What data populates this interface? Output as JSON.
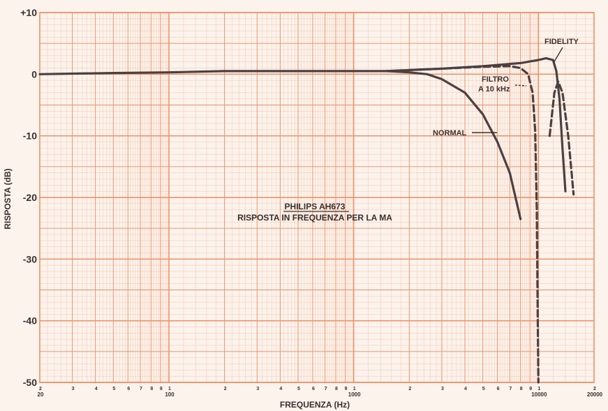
{
  "chart_data": {
    "type": "line",
    "title": "PHILIPS AH673",
    "subtitle": "RISPOSTA IN FREQUENZA PER LA MA",
    "xlabel": "FREQUENZA (Hz)",
    "ylabel": "RISPOSTA (dB)",
    "xscale": "log",
    "xlim": [
      20,
      20000
    ],
    "ylim": [
      -50,
      10
    ],
    "grid": true,
    "x_major_ticks": [
      {
        "value": 20,
        "label": "20"
      },
      {
        "value": 100,
        "label": "100"
      },
      {
        "value": 1000,
        "label": "1000"
      },
      {
        "value": 10000,
        "label": "10000"
      },
      {
        "value": 20000,
        "label": "20000"
      }
    ],
    "x_minor_ticks": [
      {
        "value": 20,
        "label": "2"
      },
      {
        "value": 30,
        "label": "3"
      },
      {
        "value": 40,
        "label": "4"
      },
      {
        "value": 50,
        "label": "5"
      },
      {
        "value": 60,
        "label": "6"
      },
      {
        "value": 70,
        "label": "7"
      },
      {
        "value": 80,
        "label": "8"
      },
      {
        "value": 90,
        "label": "9"
      },
      {
        "value": 100,
        "label": "1"
      },
      {
        "value": 200,
        "label": "2"
      },
      {
        "value": 300,
        "label": "3"
      },
      {
        "value": 400,
        "label": "4"
      },
      {
        "value": 500,
        "label": "5"
      },
      {
        "value": 600,
        "label": "6"
      },
      {
        "value": 700,
        "label": "7"
      },
      {
        "value": 800,
        "label": "8"
      },
      {
        "value": 900,
        "label": "9"
      },
      {
        "value": 1000,
        "label": "1"
      },
      {
        "value": 2000,
        "label": "2"
      },
      {
        "value": 3000,
        "label": "3"
      },
      {
        "value": 4000,
        "label": "4"
      },
      {
        "value": 5000,
        "label": "5"
      },
      {
        "value": 6000,
        "label": "6"
      },
      {
        "value": 7000,
        "label": "7"
      },
      {
        "value": 8000,
        "label": "8"
      },
      {
        "value": 9000,
        "label": "9"
      },
      {
        "value": 10000,
        "label": "1"
      },
      {
        "value": 20000,
        "label": "2"
      }
    ],
    "y_ticks": [
      {
        "value": 10,
        "label": "+10"
      },
      {
        "value": 0,
        "label": "0"
      },
      {
        "value": -10,
        "label": "-10"
      },
      {
        "value": -20,
        "label": "-20"
      },
      {
        "value": -30,
        "label": "-30"
      },
      {
        "value": -40,
        "label": "-40"
      },
      {
        "value": -50,
        "label": "-50"
      }
    ],
    "series": [
      {
        "name": "NORMAL",
        "style": "solid",
        "x": [
          20,
          50,
          100,
          200,
          500,
          1000,
          1500,
          2000,
          2500,
          3000,
          4000,
          5000,
          6000,
          7000,
          8000
        ],
        "y": [
          0,
          0.2,
          0.3,
          0.5,
          0.5,
          0.5,
          0.5,
          0.3,
          0,
          -0.8,
          -3,
          -6.5,
          -11,
          -16,
          -23.5
        ]
      },
      {
        "name": "FIDELITY",
        "style": "solid",
        "x": [
          1500,
          3000,
          5000,
          8000,
          10000,
          11000,
          12000,
          12500,
          13000,
          13500,
          14000
        ],
        "y": [
          0.5,
          0.9,
          1.3,
          1.8,
          2.3,
          2.6,
          2.3,
          0.5,
          -4,
          -12,
          -19
        ]
      },
      {
        "name": "FILTRO A 10 kHz",
        "style": "dashed",
        "x": [
          1500,
          3000,
          5000,
          7000,
          8000,
          8800,
          9300,
          9600,
          9800,
          9900,
          10000
        ],
        "y": [
          0.5,
          0.9,
          1.2,
          1.3,
          1.0,
          0,
          -3,
          -9,
          -22,
          -38,
          -50
        ]
      },
      {
        "name": "FILTRO A 10 kHz",
        "style": "dashed",
        "x": [
          11500,
          12200,
          12800,
          13500,
          14500,
          15500
        ],
        "y": [
          -10,
          -3,
          -1.2,
          -3,
          -10,
          -19.5
        ]
      }
    ],
    "annotations": [
      {
        "text": "FIDELITY",
        "target": "FIDELITY"
      },
      {
        "text": "FILTRO",
        "target": "FILTRO A 10 kHz"
      },
      {
        "text": "A 10 kHz",
        "target": "FILTRO A 10 kHz"
      },
      {
        "text": "NORMAL",
        "target": "NORMAL"
      }
    ],
    "colors": {
      "paper": "#fbf3ec",
      "grid": "#f08a5d",
      "curve": "#4b4042",
      "text": "#3a2f2f"
    }
  }
}
